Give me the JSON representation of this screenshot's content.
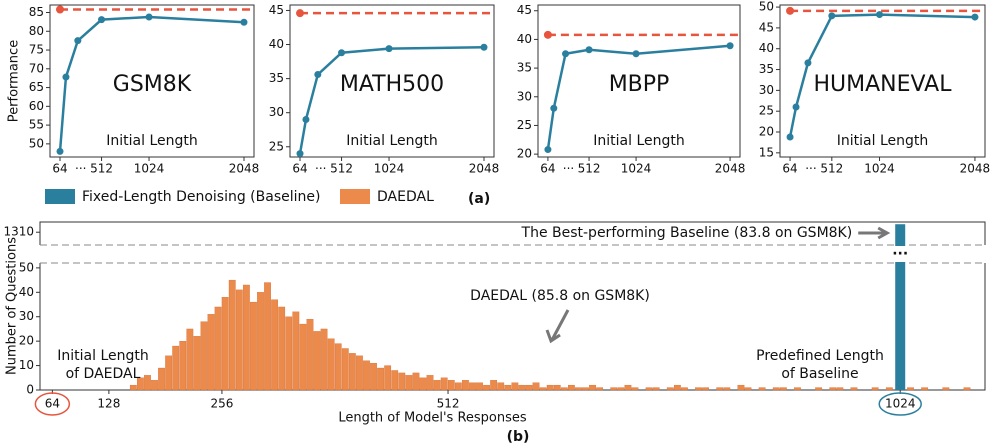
{
  "figure": {
    "legend": [
      {
        "name": "Fixed-Length Denoising (Baseline)",
        "color": "#2b7f9e"
      },
      {
        "name": "DAEDAL",
        "color": "#ec8a4c"
      }
    ],
    "label_a": "(a)",
    "label_b": "(b)"
  },
  "chart_data": [
    {
      "type": "line",
      "title": "GSM8K",
      "ylabel": "Performance",
      "xlabel": "Initial Length",
      "x_gap_label": "···",
      "x": [
        64,
        128,
        256,
        512,
        1024,
        2048
      ],
      "xlim": [
        -44,
        2156
      ],
      "xticks": [
        64,
        512,
        1024,
        2048
      ],
      "ylim": [
        46.5,
        87
      ],
      "yticks": [
        50,
        55,
        60,
        65,
        70,
        75,
        80,
        85
      ],
      "series": [
        {
          "color": "#2b7f9e",
          "values": [
            48.0,
            67.8,
            77.5,
            83.1,
            83.8,
            82.4
          ]
        }
      ],
      "reference": {
        "value": 85.8,
        "color": "#e8553f",
        "style": "dashed"
      }
    },
    {
      "type": "line",
      "title": "MATH500",
      "xlabel": "Initial Length",
      "x_gap_label": "···",
      "x": [
        64,
        128,
        256,
        512,
        1024,
        2048
      ],
      "xlim": [
        -44,
        2156
      ],
      "xticks": [
        64,
        512,
        1024,
        2048
      ],
      "ylim": [
        23.5,
        45.8
      ],
      "yticks": [
        25,
        30,
        35,
        40,
        45
      ],
      "series": [
        {
          "color": "#2b7f9e",
          "values": [
            24.0,
            29.0,
            35.6,
            38.8,
            39.4,
            39.6
          ]
        }
      ],
      "reference": {
        "value": 44.6,
        "color": "#e8553f",
        "style": "dashed"
      }
    },
    {
      "type": "line",
      "title": "MBPP",
      "xlabel": "Initial Length",
      "x_gap_label": "···",
      "x": [
        64,
        128,
        256,
        512,
        1024,
        2048
      ],
      "xlim": [
        -44,
        2156
      ],
      "xticks": [
        64,
        512,
        1024,
        2048
      ],
      "ylim": [
        19.5,
        46
      ],
      "yticks": [
        20,
        25,
        30,
        35,
        40,
        45
      ],
      "series": [
        {
          "color": "#2b7f9e",
          "values": [
            20.8,
            28.0,
            37.5,
            38.2,
            37.5,
            38.9
          ]
        }
      ],
      "reference": {
        "value": 40.8,
        "color": "#e8553f",
        "style": "dashed"
      }
    },
    {
      "type": "line",
      "title": "HUMANEVAL",
      "xlabel": "Initial Length",
      "x_gap_label": "···",
      "x": [
        64,
        128,
        256,
        512,
        1024,
        2048
      ],
      "xlim": [
        -44,
        2156
      ],
      "xticks": [
        64,
        512,
        1024,
        2048
      ],
      "ylim": [
        14,
        50.5
      ],
      "yticks": [
        15,
        20,
        25,
        30,
        35,
        40,
        45,
        50
      ],
      "series": [
        {
          "color": "#2b7f9e",
          "values": [
            18.8,
            26.0,
            36.6,
            47.9,
            48.2,
            47.6
          ]
        }
      ],
      "reference": {
        "value": 49.1,
        "color": "#e8553f",
        "style": "dashed"
      }
    },
    {
      "type": "histogram",
      "xlabel": "Length of Model's Responses",
      "ylabel": "Number of Questions",
      "xlim": [
        50,
        1120
      ],
      "xticks": [
        64,
        128,
        256,
        512,
        1024
      ],
      "ylim": [
        0,
        52
      ],
      "yticks": [
        0,
        10,
        20,
        30,
        40,
        50
      ],
      "ylim_upper": [
        1300,
        1318
      ],
      "yticks_upper": [
        1310
      ],
      "break_label": "···",
      "color": "#ec8a4c",
      "bins": [
        144,
        152,
        160,
        168,
        176,
        184,
        192,
        200,
        208,
        216,
        224,
        232,
        240,
        248,
        256,
        264,
        272,
        280,
        288,
        296,
        304,
        312,
        320,
        328,
        336,
        344,
        352,
        360,
        368,
        376,
        384,
        392,
        400,
        408,
        416,
        424,
        432,
        440,
        448,
        456,
        464,
        472,
        480,
        488,
        496,
        504,
        512,
        520,
        528,
        536,
        544,
        552,
        560,
        568,
        576,
        584,
        592,
        600,
        608,
        616,
        624,
        632,
        640,
        648,
        656,
        664,
        672,
        680,
        688,
        696,
        704,
        712,
        720,
        728,
        736,
        744,
        752,
        760,
        768,
        776,
        784,
        792,
        800,
        808,
        816,
        824,
        832,
        840,
        848,
        856,
        864,
        872,
        880,
        888,
        896,
        904,
        912,
        920,
        928,
        936,
        944,
        952,
        960,
        968,
        976,
        984,
        992,
        1000,
        1008,
        1016,
        1024,
        1032,
        1040,
        1048,
        1056,
        1064,
        1072,
        1080,
        1088,
        1096,
        1104,
        1112
      ],
      "counts": [
        0,
        2,
        5,
        6,
        4,
        9,
        14,
        18,
        20,
        25,
        22,
        28,
        31,
        34,
        38,
        45,
        41,
        43,
        36,
        40,
        44,
        37,
        34,
        30,
        32,
        27,
        29,
        24,
        25,
        21,
        19,
        17,
        15,
        14,
        12,
        11,
        9,
        10,
        8,
        7,
        6,
        7,
        5,
        6,
        4,
        5,
        4,
        3,
        4,
        3,
        3,
        2,
        4,
        3,
        2,
        3,
        2,
        2,
        3,
        1,
        2,
        2,
        1,
        2,
        1,
        1,
        2,
        1,
        0,
        1,
        1,
        2,
        1,
        0,
        1,
        1,
        0,
        1,
        2,
        1,
        0,
        1,
        1,
        0,
        1,
        1,
        0,
        2,
        1,
        0,
        1,
        0,
        1,
        1,
        0,
        1,
        0,
        0,
        1,
        0,
        1,
        1,
        0,
        1,
        0,
        0,
        1,
        0,
        1,
        0,
        0,
        1,
        0,
        1,
        0,
        0,
        1,
        0,
        0,
        1,
        0
      ],
      "baseline": {
        "x": 1024,
        "value": 1310,
        "color": "#2b7f9e"
      },
      "annotations": {
        "best_baseline": "The Best-performing Baseline (83.8 on GSM8K)",
        "daedal": "DAEDAL (85.8 on GSM8K)",
        "initial_note": [
          "Initial Length",
          "of DAEDAL"
        ],
        "predefined_note": [
          "Predefined Length",
          "of Baseline"
        ]
      }
    }
  ]
}
